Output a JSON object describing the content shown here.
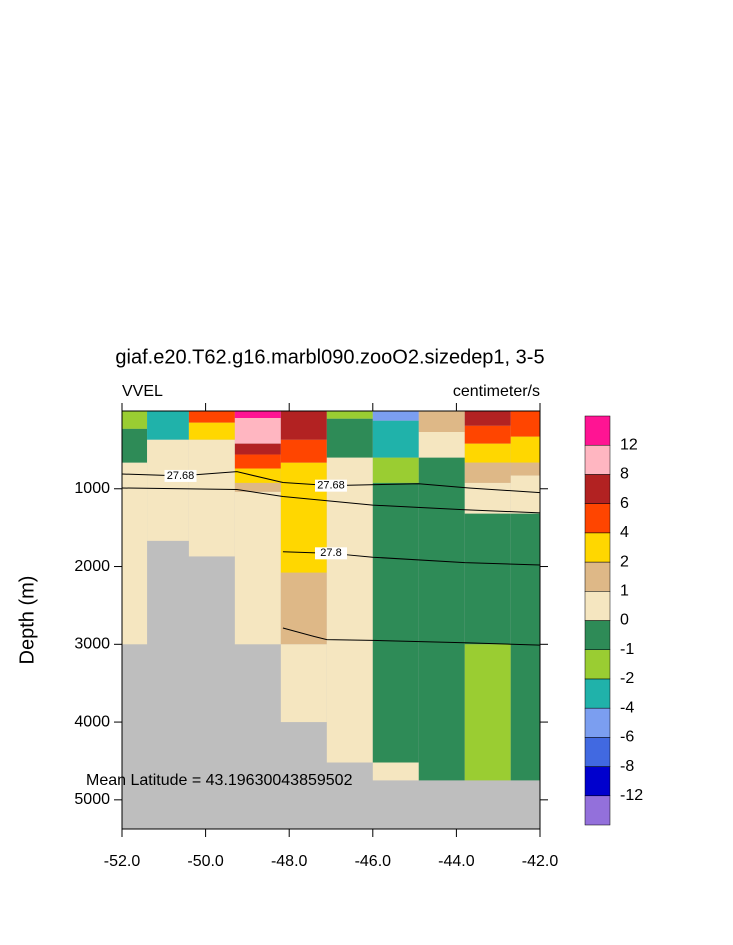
{
  "chart_data": {
    "type": "section",
    "title": "giaf.e20.T62.g16.marbl090.zooO2.sizedep1, 3-5",
    "left_label": "VVEL",
    "right_label": "centimeter/s",
    "y_label": "Depth (m)",
    "annotation": "Mean Latitude = 43.19630043859502",
    "xlim": [
      -52,
      -42
    ],
    "xticks": [
      {
        "value": -52,
        "label": "-52.0"
      },
      {
        "value": -50,
        "label": "-50.0"
      },
      {
        "value": -48,
        "label": "-48.0"
      },
      {
        "value": -46,
        "label": "-46.0"
      },
      {
        "value": -44,
        "label": "-44.0"
      },
      {
        "value": -42,
        "label": "-42.0"
      }
    ],
    "ylim": [
      0,
      5375
    ],
    "yticks": [
      1000,
      2000,
      3000,
      4000,
      5000
    ],
    "missing_color": "#bebebe",
    "levels": [
      -12,
      -8,
      -6,
      -4,
      -2,
      -1,
      0,
      1,
      2,
      4,
      6,
      8,
      12
    ],
    "colors": [
      "#9370db",
      "#0000cd",
      "#4169e1",
      "#7b9ef0",
      "#20b2aa",
      "#9acd32",
      "#2e8b57",
      "#f5e6c0",
      "#deb887",
      "#ffd700",
      "#ff4500",
      "#b22222",
      "#ffb6c1",
      "#ff1493"
    ],
    "columns": [
      {
        "lon": [
          -52,
          -51.4
        ],
        "cells": [
          [
            0,
            230,
            -1.5
          ],
          [
            230,
            665,
            -0.5
          ],
          [
            665,
            3000,
            0.5
          ]
        ]
      },
      {
        "lon": [
          -51.4,
          -50.4
        ],
        "cells": [
          [
            0,
            370,
            -3
          ],
          [
            370,
            1670,
            0.5
          ]
        ]
      },
      {
        "lon": [
          -50.4,
          -49.3
        ],
        "cells": [
          [
            0,
            150,
            5
          ],
          [
            150,
            370,
            3
          ],
          [
            370,
            1870,
            0.5
          ]
        ]
      },
      {
        "lon": [
          -49.3,
          -48.2
        ],
        "cells": [
          [
            0,
            90,
            14
          ],
          [
            90,
            420,
            10
          ],
          [
            420,
            560,
            7
          ],
          [
            560,
            740,
            5
          ],
          [
            740,
            925,
            3
          ],
          [
            925,
            1040,
            1.5
          ],
          [
            1040,
            3000,
            0.5
          ]
        ]
      },
      {
        "lon": [
          -48.2,
          -47.1
        ],
        "cells": [
          [
            0,
            370,
            7
          ],
          [
            370,
            665,
            5
          ],
          [
            665,
            2080,
            3
          ],
          [
            2080,
            3000,
            1.5
          ],
          [
            3000,
            4000,
            0.5
          ]
        ]
      },
      {
        "lon": [
          -47.1,
          -46.0
        ],
        "cells": [
          [
            0,
            100,
            -1.5
          ],
          [
            100,
            600,
            -0.5
          ],
          [
            600,
            4520,
            0.5
          ]
        ]
      },
      {
        "lon": [
          -46.0,
          -44.9
        ],
        "cells": [
          [
            0,
            125,
            -5
          ],
          [
            125,
            600,
            -3
          ],
          [
            600,
            925,
            -1.5
          ],
          [
            925,
            4520,
            -0.5
          ],
          [
            4520,
            4750,
            0.5
          ]
        ]
      },
      {
        "lon": [
          -44.9,
          -43.8
        ],
        "cells": [
          [
            0,
            270,
            1.5
          ],
          [
            270,
            600,
            0.5
          ],
          [
            600,
            4750,
            -0.5
          ]
        ]
      },
      {
        "lon": [
          -43.8,
          -42.7
        ],
        "cells": [
          [
            0,
            190,
            7
          ],
          [
            190,
            420,
            5
          ],
          [
            420,
            665,
            3
          ],
          [
            665,
            925,
            1.5
          ],
          [
            925,
            1320,
            0.5
          ],
          [
            1320,
            3000,
            -0.5
          ],
          [
            3000,
            4750,
            -1.5
          ]
        ]
      },
      {
        "lon": [
          -42.7,
          -42
        ],
        "cells": [
          [
            0,
            330,
            5
          ],
          [
            330,
            665,
            3
          ],
          [
            665,
            830,
            1.5
          ],
          [
            830,
            1320,
            0.5
          ],
          [
            1320,
            4750,
            -0.5
          ]
        ]
      }
    ],
    "contours": [
      {
        "level": 27.68,
        "x": [
          -52,
          -50.6,
          -49.25,
          -48.15,
          -47.0,
          -44.9,
          -43.7,
          -42
        ],
        "depth": [
          810,
          835,
          780,
          920,
          960,
          935,
          990,
          1050
        ]
      },
      {
        "x": [
          -52,
          -49.25,
          -48.15,
          -46.0,
          -43.8,
          -42
        ],
        "depth": [
          990,
          1010,
          1100,
          1210,
          1270,
          1310
        ]
      },
      {
        "level": 27.8,
        "x": [
          -48.15,
          -47.0,
          -46.0,
          -43.8,
          -42
        ],
        "depth": [
          1810,
          1830,
          1880,
          1950,
          1980
        ]
      },
      {
        "x": [
          -48.15,
          -47.4,
          -47.1,
          -46.0,
          -43.8,
          -42
        ],
        "depth": [
          2790,
          2900,
          2940,
          2950,
          2980,
          3010
        ]
      }
    ]
  }
}
